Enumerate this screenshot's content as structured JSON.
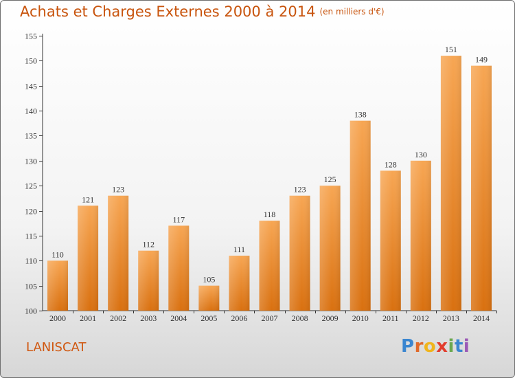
{
  "header": {
    "title": "Achats et Charges Externes 2000 à 2014",
    "unit_note": "(en milliers d'€)"
  },
  "footer": {
    "commune": "LANISCAT",
    "logo_letters": [
      "P",
      "r",
      "o",
      "x",
      "i",
      "t",
      "i"
    ],
    "logo_colors": [
      "#3a86d0",
      "#e0692a",
      "#f0b41c",
      "#e23c2d",
      "#6aa84f",
      "#3a86d0",
      "#9b59b6"
    ]
  },
  "colors": {
    "bar_top": "#f7a653",
    "bar_bottom": "#d9700f",
    "axis": "#333333",
    "grid": "#d0d0d0",
    "text": "#333333",
    "title": "#c8540d"
  },
  "chart_data": {
    "type": "bar",
    "title": "Achats et Charges Externes 2000 à 2014",
    "subtitle": "(en milliers d'€)",
    "xlabel": "",
    "ylabel": "",
    "categories": [
      "2000",
      "2001",
      "2002",
      "2003",
      "2004",
      "2005",
      "2006",
      "2007",
      "2008",
      "2009",
      "2010",
      "2011",
      "2012",
      "2013",
      "2014"
    ],
    "values": [
      110,
      121,
      123,
      112,
      117,
      105,
      111,
      118,
      123,
      125,
      138,
      128,
      130,
      151,
      149
    ],
    "ylim": [
      100,
      155
    ],
    "yticks": [
      100,
      105,
      110,
      115,
      120,
      125,
      130,
      135,
      140,
      145,
      150,
      155
    ],
    "data_labels": true,
    "grid": false,
    "legend": "none"
  }
}
